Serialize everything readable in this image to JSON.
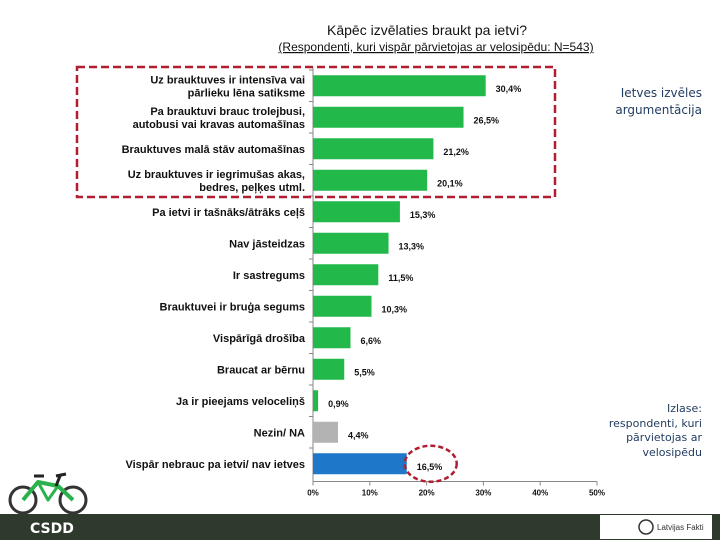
{
  "chart_data": {
    "type": "bar",
    "orientation": "horizontal",
    "title": "Kāpēc izvēlaties braukt pa ietvi?",
    "subtitle": "(Respondenti, kuri vispār pārvietojas ar velosipēdu: N=543)",
    "categories": [
      "Uz brauktuves ir intensīva vai pārlieku lēna satiksme",
      "Pa brauktuvi brauc trolejbusi, autobusi vai kravas automašīnas",
      "Brauktuves malā stāv automašīnas",
      "Uz brauktuves ir iegrimušas akas, bedres, peļķes utml.",
      "Pa ietvi ir tašnāks/ātrāks ceļš",
      "Nav jāsteidzas",
      "Ir sastregums",
      "Brauktuvei ir bruģa segums",
      "Vispārīgā drošība",
      "Braucat ar bērnu",
      "Ja ir pieejams veloceliņš",
      "Nezin/ NA",
      "Vispār nebrauc pa ietvi/ nav ietves"
    ],
    "category_lines": [
      [
        "Uz brauktuves ir intensīva vai",
        "pārlieku lēna satiksme"
      ],
      [
        "Pa brauktuvi brauc trolejbusi,",
        "autobusi vai kravas automašīnas"
      ],
      [
        "Brauktuves malā stāv automašīnas"
      ],
      [
        "Uz brauktuves ir iegrimušas akas,",
        "bedres, peļķes utml."
      ],
      [
        "Pa ietvi ir tašnāks/ātrāks ceļš"
      ],
      [
        "Nav jāsteidzas"
      ],
      [
        "Ir sastregums"
      ],
      [
        "Brauktuvei ir bruģa segums"
      ],
      [
        "Vispārīgā drošība"
      ],
      [
        "Braucat ar bērnu"
      ],
      [
        "Ja ir pieejams veloceliņš"
      ],
      [
        "Nezin/ NA"
      ],
      [
        "Vispār nebrauc pa ietvi/ nav ietves"
      ]
    ],
    "values": [
      30.4,
      26.5,
      21.2,
      20.1,
      15.3,
      13.3,
      11.5,
      10.3,
      6.6,
      5.5,
      0.9,
      4.4,
      16.5
    ],
    "value_labels": [
      "30,4%",
      "26,5%",
      "21,2%",
      "20,1%",
      "15,3%",
      "13,3%",
      "11,5%",
      "10,3%",
      "6,6%",
      "5,5%",
      "0,9%",
      "4,4%",
      "16,5%"
    ],
    "bar_colors": [
      "#22b84a",
      "#22b84a",
      "#22b84a",
      "#22b84a",
      "#22b84a",
      "#22b84a",
      "#22b84a",
      "#22b84a",
      "#22b84a",
      "#22b84a",
      "#22b84a",
      "#b3b3b3",
      "#1f77c9"
    ],
    "xlim": [
      0,
      50
    ],
    "xticks": [
      "0%",
      "10%",
      "20%",
      "30%",
      "40%",
      "50%"
    ],
    "grid": false,
    "highlight": {
      "box_categories": [
        0,
        1,
        2,
        3
      ],
      "circled_value": 12,
      "color": "#b01e2f"
    }
  },
  "notes": {
    "argumentation": "Ietves izvēles argumentācija",
    "sample": "Izlase: respondenti, kuri pārvietojas ar velosipēdu"
  },
  "footer": {
    "logo_text": "CSDD",
    "partner_text": "Latvijas Fakti"
  },
  "colors": {
    "green": "#22b84a",
    "blue": "#1f77c9",
    "gray": "#b3b3b3",
    "highlight": "#b01e2f",
    "footer": "#2e3b2c"
  }
}
